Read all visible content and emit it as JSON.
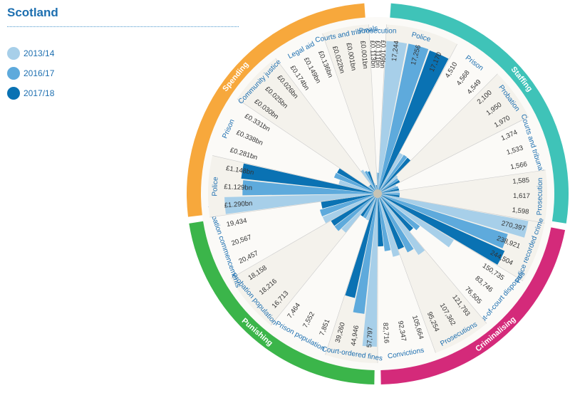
{
  "title": "Scotland",
  "legend": [
    "2013/14",
    "2016/17",
    "2017/18"
  ],
  "colors": {
    "years": [
      "#a7cfe9",
      "#5eaadc",
      "#0a72b3"
    ],
    "spending": "#f7a83c",
    "staffing": "#3fc3b8",
    "criminalising": "#d42a7a",
    "punishing": "#3bb54a",
    "label_text": "#1d6fb0",
    "value_text": "#333333",
    "divider": "#cccccc",
    "stripe": "#f4f2ec"
  },
  "chart_data": {
    "type": "radial-bar",
    "title": "Scotland",
    "series": [
      "2013/14",
      "2016/17",
      "2017/18"
    ],
    "sections": [
      {
        "name": "Staffing",
        "categories": [
          {
            "name": "Police",
            "values": [
              17244,
              17256,
              17170
            ],
            "labels": [
              "17,244",
              "17,256",
              "17,170"
            ]
          },
          {
            "name": "Prison",
            "values": [
              4510,
              4568,
              4549
            ],
            "labels": [
              "4,510",
              "4,568",
              "4,549"
            ]
          },
          {
            "name": "Probation",
            "values": [
              2100,
              1950,
              1970
            ],
            "labels": [
              "2,100",
              "1,950",
              "1,970"
            ]
          },
          {
            "name": "Courts and tribunals",
            "values": [
              1374,
              1533,
              1566
            ],
            "labels": [
              "1,374",
              "1,533",
              "1,566"
            ]
          },
          {
            "name": "Prosecution",
            "values": [
              1585,
              1617,
              1598
            ],
            "labels": [
              "1,585",
              "1,617",
              "1,598"
            ]
          }
        ]
      },
      {
        "name": "Criminalising",
        "categories": [
          {
            "name": "Police recorded crime",
            "values": [
              270397,
              238921,
              244504
            ],
            "labels": [
              "270,397",
              "238,921",
              "244,504"
            ]
          },
          {
            "name": "Out-of-court disposals",
            "values": [
              150735,
              83746,
              76505
            ],
            "labels": [
              "150,735",
              "83,746",
              "76,505"
            ]
          },
          {
            "name": "Prosecutions",
            "values": [
              121793,
              107362,
              95254
            ],
            "labels": [
              "121,793",
              "107,362",
              "95,254"
            ]
          },
          {
            "name": "Convictions",
            "values": [
              105664,
              92347,
              82716
            ],
            "labels": [
              "105,664",
              "92,347",
              "82,716"
            ]
          }
        ]
      },
      {
        "name": "Punishing",
        "categories": [
          {
            "name": "Court-ordered fines",
            "values": [
              57797,
              44946,
              39260
            ],
            "labels": [
              "57,797",
              "44,946",
              "39,260"
            ]
          },
          {
            "name": "Prison population",
            "values": [
              7851,
              7552,
              7464
            ],
            "labels": [
              "7,851",
              "7,552",
              "7,464"
            ]
          },
          {
            "name": "Probation population",
            "values": [
              16713,
              18216,
              18158
            ],
            "labels": [
              "16,713",
              "18,216",
              "18,158"
            ]
          },
          {
            "name": "Probation commencements",
            "values": [
              20457,
              20567,
              19434
            ],
            "labels": [
              "20,457",
              "20,567",
              "19,434"
            ]
          }
        ]
      },
      {
        "name": "Spending",
        "categories": [
          {
            "name": "Police",
            "values": [
              1.29,
              1.129,
              1.148
            ],
            "labels": [
              "£1.290bn",
              "£1.129bn",
              "£1.148bn"
            ]
          },
          {
            "name": "Prison",
            "values": [
              0.281,
              0.338,
              0.331
            ],
            "labels": [
              "£0.281bn",
              "£0.338bn",
              "£0.331bn"
            ]
          },
          {
            "name": "Community justice",
            "values": [
              0.03,
              0.025,
              0.026
            ],
            "labels": [
              "£0.030bn",
              "£0.025bn",
              "£0.026bn"
            ]
          },
          {
            "name": "Legal aid",
            "values": [
              0.174,
              0.149,
              0.136
            ],
            "labels": [
              "£0.174bn",
              "£0.149bn",
              "£0.136bn"
            ]
          },
          {
            "name": "Courts and tribunals",
            "values": [
              0.022,
              0.001,
              0.001
            ],
            "labels": [
              "£0.022bn",
              "£0.001bn",
              "£0.001bn"
            ]
          },
          {
            "name": "Prosecution",
            "values": [
              0.113,
              0.111,
              0.109
            ],
            "labels": [
              "£0.113bn",
              "£0.111bn",
              "£0.109bn"
            ]
          }
        ]
      }
    ]
  }
}
